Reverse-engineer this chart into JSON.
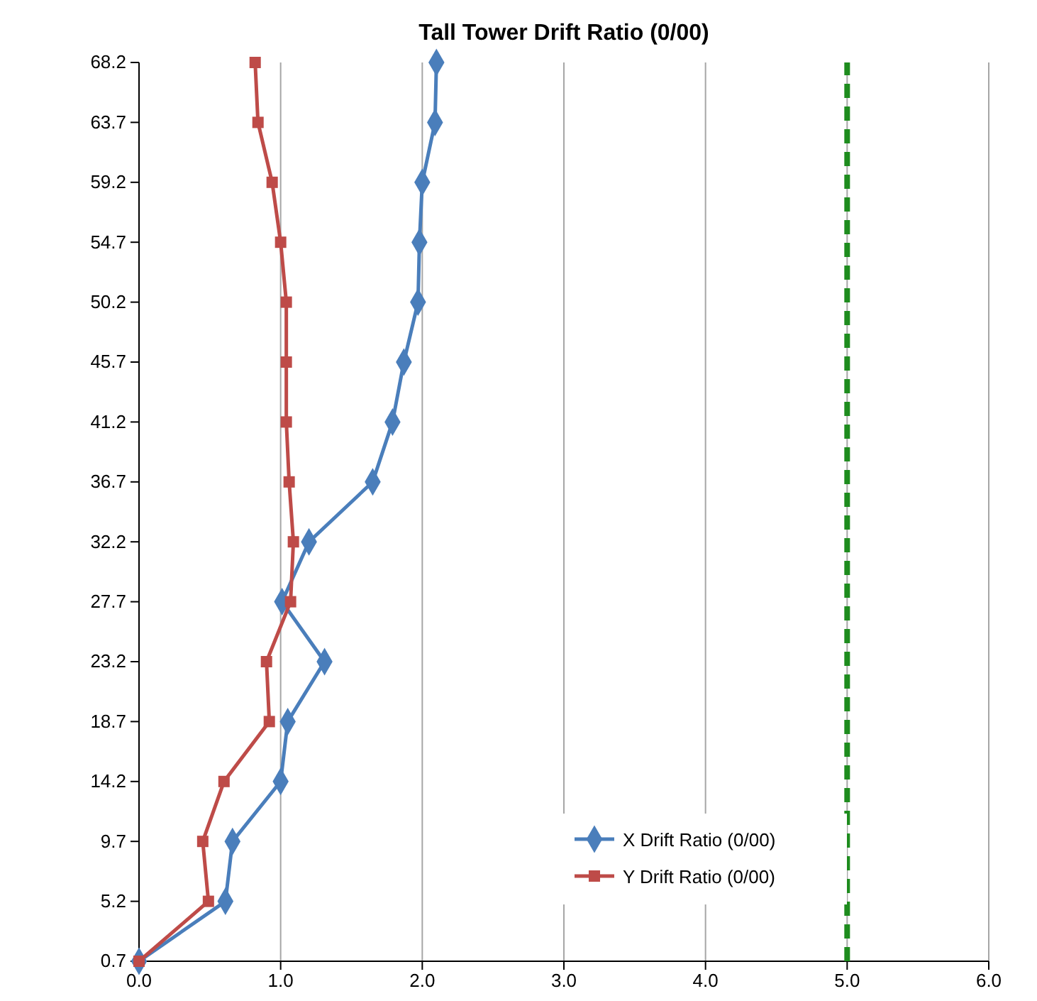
{
  "chart_data": {
    "type": "line",
    "title": "Tall Tower Drift Ratio (0/00)",
    "series": [
      {
        "name": "X Drift Ratio (0/00)",
        "color": "#4a7ebb",
        "marker": "diamond",
        "x": [
          0,
          0.61,
          0.66,
          1.0,
          1.05,
          1.31,
          1.01,
          1.2,
          1.65,
          1.79,
          1.87,
          1.97,
          1.98,
          2.0,
          2.09,
          2.1
        ],
        "values": [
          0.7,
          5.2,
          9.7,
          14.2,
          18.7,
          23.2,
          27.7,
          32.2,
          36.7,
          41.2,
          45.7,
          50.2,
          54.7,
          59.2,
          63.7,
          68.2
        ]
      },
      {
        "name": "Y Drift Ratio (0/00)",
        "color": "#be4b48",
        "marker": "square",
        "x": [
          0,
          0.49,
          0.45,
          0.6,
          0.92,
          0.9,
          1.07,
          1.09,
          1.06,
          1.04,
          1.04,
          1.04,
          1.0,
          0.94,
          0.84,
          0.82
        ],
        "values": [
          0.7,
          5.2,
          9.7,
          14.2,
          18.7,
          23.2,
          27.7,
          32.2,
          36.7,
          41.2,
          45.7,
          50.2,
          54.7,
          59.2,
          63.7,
          68.2
        ]
      }
    ],
    "xlim": [
      0,
      6
    ],
    "xticks": [
      {
        "value": 0,
        "label": "0.0"
      },
      {
        "value": 1,
        "label": "1.0"
      },
      {
        "value": 2,
        "label": "2.0"
      },
      {
        "value": 3,
        "label": "3.0"
      },
      {
        "value": 4,
        "label": "4.0"
      },
      {
        "value": 5,
        "label": "5.0"
      },
      {
        "value": 6,
        "label": "6.0"
      }
    ],
    "ylim": [
      0.7,
      68.2
    ],
    "yticks": [
      0.7,
      5.2,
      9.7,
      14.2,
      18.7,
      23.2,
      27.7,
      32.2,
      36.7,
      41.2,
      45.7,
      50.2,
      54.7,
      59.2,
      63.7,
      68.2
    ],
    "grid": "x",
    "legend": "bottom right",
    "ref_lines": [
      {
        "axis": "x",
        "value": 5,
        "label": null,
        "color": "#1e8c1e",
        "line_style": "dashed"
      }
    ]
  }
}
